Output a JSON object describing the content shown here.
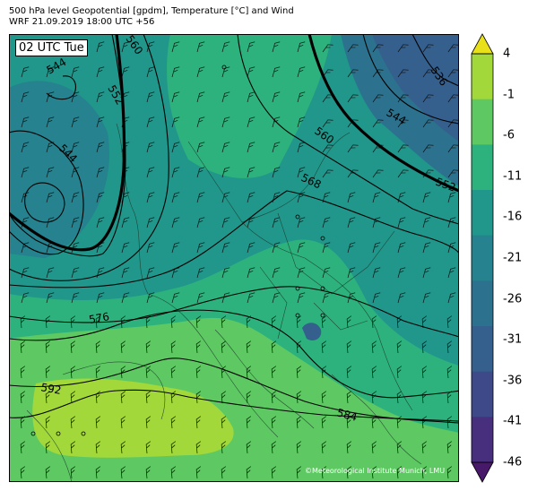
{
  "header": {
    "line1": "500 hPa level Geopotential [gpdm], Temperature [°C] and Wind",
    "line2": "WRF 21.09.2019 18:00 UTC +56"
  },
  "map": {
    "time_label": "02 UTC Tue",
    "credit": "©Meteorological Institute Munich, LMU",
    "contour_labels": [
      {
        "text": "544"
      },
      {
        "text": "552"
      },
      {
        "text": "560"
      },
      {
        "text": "544"
      },
      {
        "text": "536"
      },
      {
        "text": "544"
      },
      {
        "text": "560"
      },
      {
        "text": "552"
      },
      {
        "text": "568"
      },
      {
        "text": "576"
      },
      {
        "text": "592"
      },
      {
        "text": "584"
      }
    ]
  },
  "colorbar": {
    "ticks": [
      "4",
      "-1",
      "-6",
      "-11",
      "-16",
      "-21",
      "-26",
      "-31",
      "-36",
      "-41",
      "-46"
    ],
    "colors_top_to_bottom": [
      "#e8e11a",
      "#a2d83a",
      "#5ec962",
      "#2db27d",
      "#21968b",
      "#25828e",
      "#2c728e",
      "#355f8d",
      "#3e4989",
      "#472f7d",
      "#48186a"
    ]
  }
}
